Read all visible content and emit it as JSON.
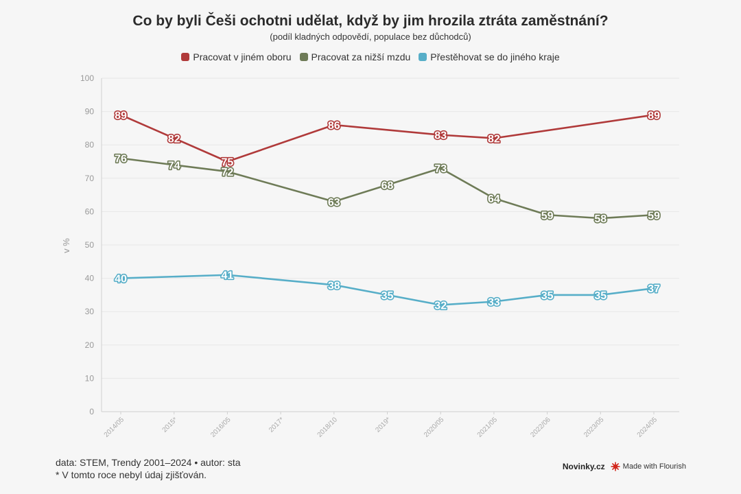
{
  "title": "Co by byli Češi ochotni udělat, když by jim hrozila ztráta zaměstnání?",
  "subtitle": "(podíl kladných odpovědí, populace bez důchodců)",
  "footer": {
    "source": "data: STEM, Trendy 2001–2024 • autor: sta",
    "note": "* V tomto roce nebyl údaj zjišťován.",
    "brand": "Novinky.cz",
    "made_with": "Made with Flourish"
  },
  "chart_data": {
    "type": "line",
    "title": "Co by byli Češi ochotni udělat, když by jim hrozila ztráta zaměstnání?",
    "subtitle": "(podíl kladných odpovědí, populace bez důchodců)",
    "xlabel": "",
    "ylabel": "v %",
    "ylim": [
      0,
      100
    ],
    "yticks": [
      0,
      10,
      20,
      30,
      40,
      50,
      60,
      70,
      80,
      90,
      100
    ],
    "categories": [
      "2014/05",
      "2015*",
      "2016/05",
      "2017*",
      "2018/10",
      "2019*",
      "2020/05",
      "2021/05",
      "2022/06",
      "2023/05",
      "2024/05"
    ],
    "grid": true,
    "legend": "top-center",
    "series": [
      {
        "name": "Pracovat v jiném oboru",
        "color": "#b03a3a",
        "values": [
          89,
          82,
          75,
          null,
          86,
          null,
          83,
          82,
          null,
          null,
          89
        ]
      },
      {
        "name": "Pracovat za nižší mzdu",
        "color": "#6e7b57",
        "values": [
          76,
          74,
          72,
          null,
          63,
          68,
          73,
          64,
          59,
          58,
          59
        ]
      },
      {
        "name": "Přestěhovat se do jiného kraje",
        "color": "#57aec8",
        "values": [
          40,
          null,
          41,
          null,
          38,
          35,
          32,
          33,
          35,
          35,
          37
        ]
      }
    ]
  }
}
